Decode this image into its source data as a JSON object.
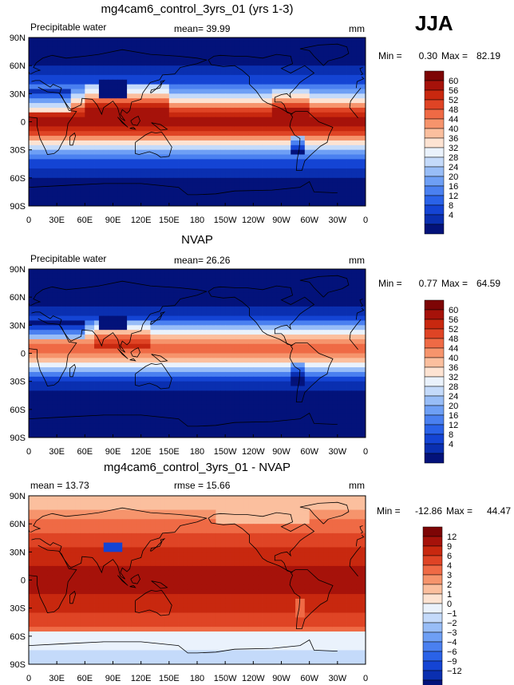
{
  "season": "JJA",
  "lat_ticks": [
    "90N",
    "60N",
    "30N",
    "0",
    "30S",
    "60S",
    "90S"
  ],
  "lon_ticks": [
    "0",
    "30E",
    "60E",
    "90E",
    "120E",
    "150E",
    "180",
    "150W",
    "120W",
    "90W",
    "60W",
    "30W",
    "0"
  ],
  "colors": {
    "abs_scale": [
      "#03127a",
      "#0a2fb0",
      "#1444d4",
      "#2a62e8",
      "#4a80f0",
      "#6e9ff5",
      "#98bdf7",
      "#c4dafa",
      "#eaf2fc",
      "#fde3d2",
      "#fbbf9e",
      "#f6946c",
      "#ef6a45",
      "#df4425",
      "#c8280f",
      "#a6120a",
      "#7d0505"
    ],
    "diff_scale": [
      "#03127a",
      "#0a2fb0",
      "#1444d4",
      "#2a62e8",
      "#4a80f0",
      "#6e9ff5",
      "#98bdf7",
      "#c4dafa",
      "#eaf2fc",
      "#fde3d2",
      "#fbbf9e",
      "#f6946c",
      "#ef6a45",
      "#df4425",
      "#c8280f",
      "#a6120a",
      "#7d0505"
    ]
  },
  "chart_data": [
    {
      "type": "heatmap",
      "title": "mg4cam6_control_3yrs_01 (yrs 1-3)",
      "left_label": "Precipitable water",
      "mean_text": "mean=  39.99",
      "units": "mm",
      "min_label": "Min =",
      "min_value": "0.30",
      "max_label": "Max =",
      "max_value": "82.19",
      "mean": 39.99,
      "min": 0.3,
      "max": 82.19,
      "colorbar_levels": [
        "60",
        "56",
        "52",
        "48",
        "44",
        "40",
        "36",
        "32",
        "28",
        "24",
        "20",
        "16",
        "12",
        "8",
        "4"
      ],
      "x_range": [
        0,
        360
      ],
      "y_range": [
        -90,
        90
      ]
    },
    {
      "type": "heatmap",
      "title": "NVAP",
      "left_label": "Precipitable water",
      "mean_text": "mean=  26.26",
      "units": "mm",
      "min_label": "Min =",
      "min_value": "0.77",
      "max_label": "Max =",
      "max_value": "64.59",
      "mean": 26.26,
      "min": 0.77,
      "max": 64.59,
      "colorbar_levels": [
        "60",
        "56",
        "52",
        "48",
        "44",
        "40",
        "36",
        "32",
        "28",
        "24",
        "20",
        "16",
        "12",
        "8",
        "4"
      ],
      "x_range": [
        0,
        360
      ],
      "y_range": [
        -90,
        90
      ]
    },
    {
      "type": "heatmap",
      "title": "mg4cam6_control_3yrs_01 - NVAP",
      "left_label": "mean =  13.73",
      "mean_text": "rmse =  15.66",
      "units": "mm",
      "min_label": "Min =",
      "min_value": "-12.86",
      "max_label": "Max =",
      "max_value": "44.47",
      "mean": 13.73,
      "rmse": 15.66,
      "min": -12.86,
      "max": 44.47,
      "colorbar_levels": [
        "12",
        "9",
        "6",
        "4",
        "3",
        "2",
        "1",
        "0",
        "−1",
        "−2",
        "−3",
        "−4",
        "−6",
        "−9",
        "−12"
      ],
      "x_range": [
        0,
        360
      ],
      "y_range": [
        -90,
        90
      ]
    }
  ]
}
